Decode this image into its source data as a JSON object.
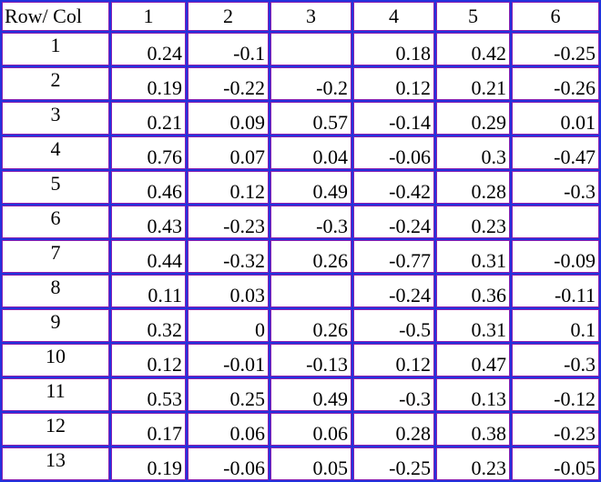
{
  "table": {
    "corner_label": "Row/ Col",
    "columns": [
      "1",
      "2",
      "3",
      "4",
      "5",
      "6"
    ],
    "rows": [
      {
        "label": "1",
        "cells": [
          "0.24",
          "-0.1",
          "",
          "0.18",
          "0.42",
          "-0.25"
        ]
      },
      {
        "label": "2",
        "cells": [
          "0.19",
          "-0.22",
          "-0.2",
          "0.12",
          "0.21",
          "-0.26"
        ]
      },
      {
        "label": "3",
        "cells": [
          "0.21",
          "0.09",
          "0.57",
          "-0.14",
          "0.29",
          "0.01"
        ]
      },
      {
        "label": "4",
        "cells": [
          "0.76",
          "0.07",
          "0.04",
          "-0.06",
          "0.3",
          "-0.47"
        ]
      },
      {
        "label": "5",
        "cells": [
          "0.46",
          "0.12",
          "0.49",
          "-0.42",
          "0.28",
          "-0.3"
        ]
      },
      {
        "label": "6",
        "cells": [
          "0.43",
          "-0.23",
          "-0.3",
          "-0.24",
          "0.23",
          ""
        ]
      },
      {
        "label": "7",
        "cells": [
          "0.44",
          "-0.32",
          "0.26",
          "-0.77",
          "0.31",
          "-0.09"
        ]
      },
      {
        "label": "8",
        "cells": [
          "0.11",
          "0.03",
          "",
          "-0.24",
          "0.36",
          "-0.11"
        ]
      },
      {
        "label": "9",
        "cells": [
          "0.32",
          "0",
          "0.26",
          "-0.5",
          "0.31",
          "0.1"
        ]
      },
      {
        "label": "10",
        "cells": [
          "0.12",
          "-0.01",
          "-0.13",
          "0.12",
          "0.47",
          "-0.3"
        ]
      },
      {
        "label": "11",
        "cells": [
          "0.53",
          "0.25",
          "0.49",
          "-0.3",
          "0.13",
          "-0.12"
        ]
      },
      {
        "label": "12",
        "cells": [
          "0.17",
          "0.06",
          "0.06",
          "0.28",
          "0.38",
          "-0.23"
        ]
      },
      {
        "label": "13",
        "cells": [
          "0.19",
          "-0.06",
          "0.05",
          "-0.25",
          "0.23",
          "-0.05"
        ]
      }
    ]
  },
  "colors": {
    "grid_border": "#2233dd",
    "grid_inner_line": "#8a1fb0",
    "background": "#ffffff",
    "text": "#000000"
  }
}
